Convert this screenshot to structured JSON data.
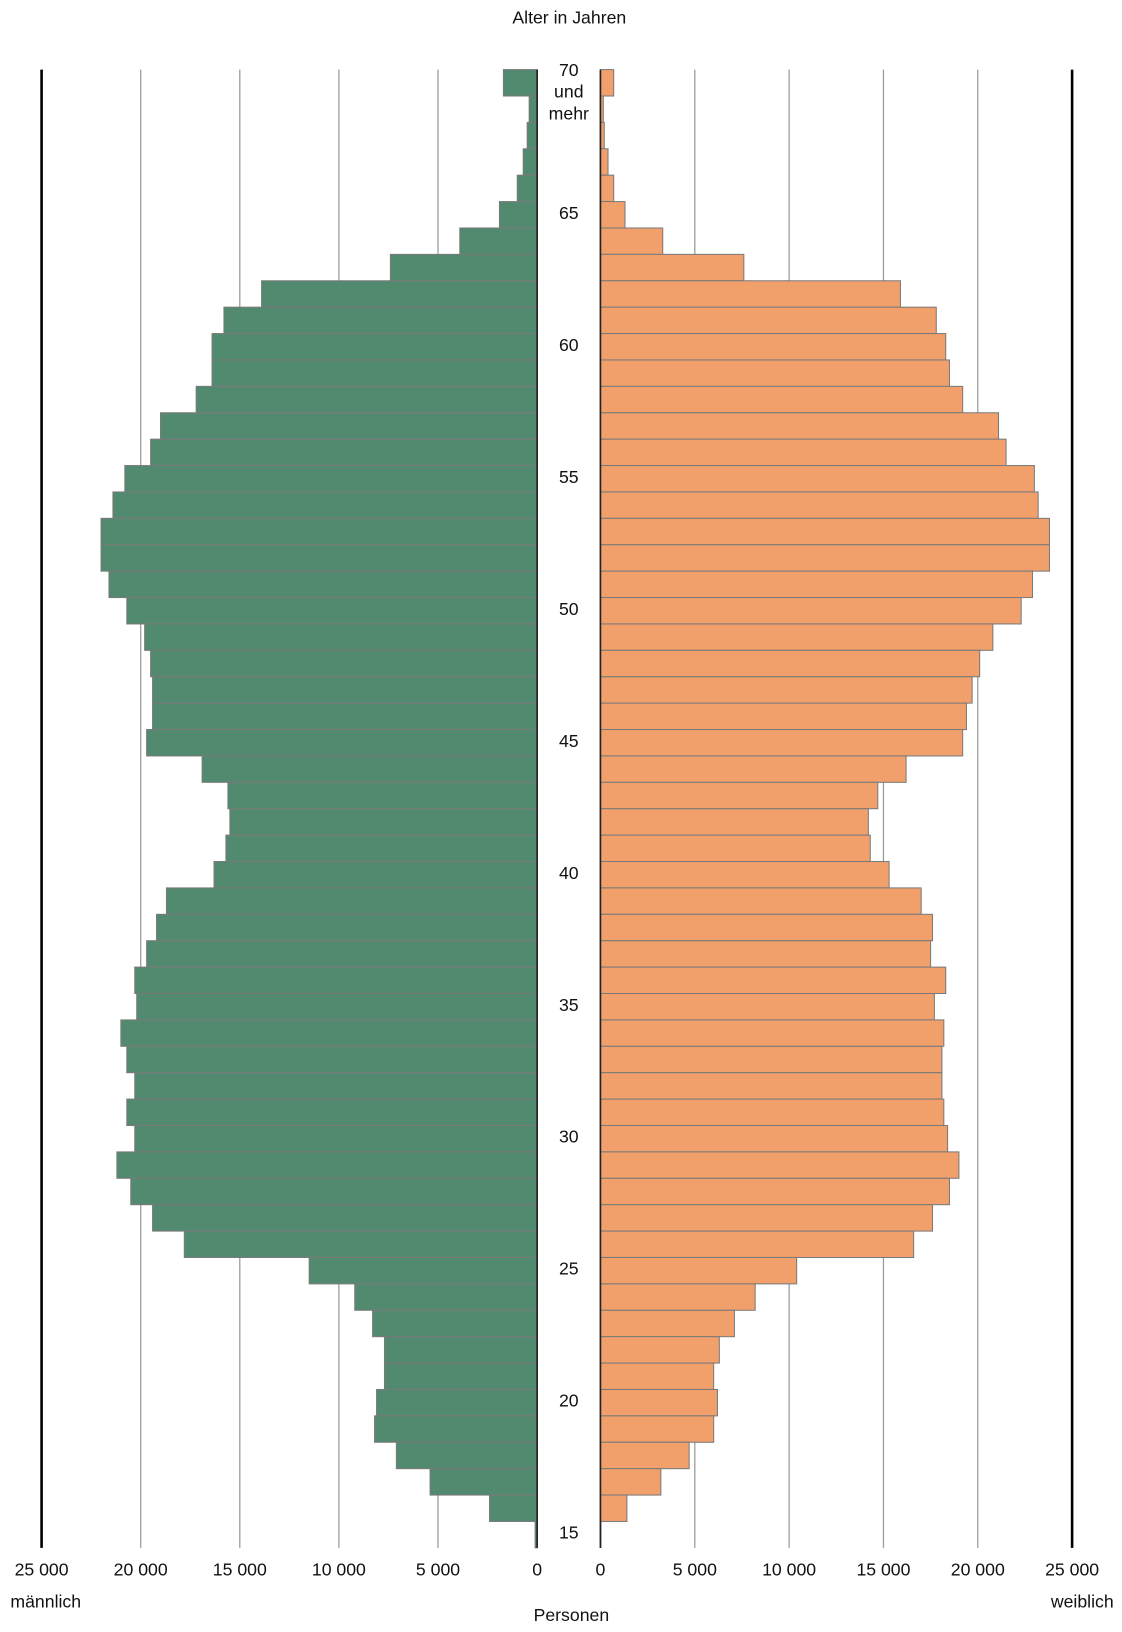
{
  "chart_data": {
    "type": "pyramid",
    "title": "Alter in Jahren",
    "xlabel": "Personen",
    "categories": [
      "70 und mehr",
      null,
      null,
      null,
      null,
      "65",
      null,
      null,
      null,
      null,
      "60",
      null,
      null,
      null,
      null,
      "55",
      null,
      null,
      null,
      null,
      "50",
      null,
      null,
      null,
      null,
      "45",
      null,
      null,
      null,
      null,
      "40",
      null,
      null,
      null,
      null,
      "35",
      null,
      null,
      null,
      null,
      "30",
      null,
      null,
      null,
      null,
      "25",
      null,
      null,
      null,
      null,
      "20",
      null,
      null,
      null,
      null,
      "15"
    ],
    "series": [
      {
        "name": "männlich",
        "color": "#528a6f",
        "side": "left",
        "values": [
          1700,
          400,
          500,
          700,
          1000,
          1900,
          3900,
          7400,
          13900,
          15800,
          16400,
          16400,
          17200,
          19000,
          19500,
          20800,
          21400,
          22000,
          22000,
          21600,
          20700,
          19800,
          19500,
          19400,
          19400,
          19700,
          16900,
          15600,
          15500,
          15700,
          16300,
          18700,
          19200,
          19700,
          20300,
          20200,
          21000,
          20700,
          20300,
          20700,
          20300,
          21200,
          20500,
          19400,
          17800,
          11500,
          9200,
          8300,
          7700,
          7700,
          8100,
          8200,
          7100,
          5400,
          2400,
          100
        ]
      },
      {
        "name": "weiblich",
        "color": "#f2a06b",
        "side": "right",
        "values": [
          700,
          150,
          200,
          400,
          700,
          1300,
          3300,
          7600,
          15900,
          17800,
          18300,
          18500,
          19200,
          21100,
          21500,
          23000,
          23200,
          23800,
          23800,
          22900,
          22300,
          20800,
          20100,
          19700,
          19400,
          19200,
          16200,
          14700,
          14200,
          14300,
          15300,
          17000,
          17600,
          17500,
          18300,
          17700,
          18200,
          18100,
          18100,
          18200,
          18400,
          19000,
          18500,
          17600,
          16600,
          10400,
          8200,
          7100,
          6300,
          6000,
          6200,
          6000,
          4700,
          3200,
          1400,
          0
        ]
      }
    ],
    "xlim": [
      0,
      25000
    ],
    "xticks": [
      0,
      {
        "value": 5000,
        "label": "5 000"
      },
      {
        "value": 10000,
        "label": "10 000"
      },
      {
        "value": 15000,
        "label": "15 000"
      },
      {
        "value": 20000,
        "label": "20 000"
      },
      {
        "value": 25000,
        "label": "25 000"
      }
    ],
    "grid": true
  }
}
